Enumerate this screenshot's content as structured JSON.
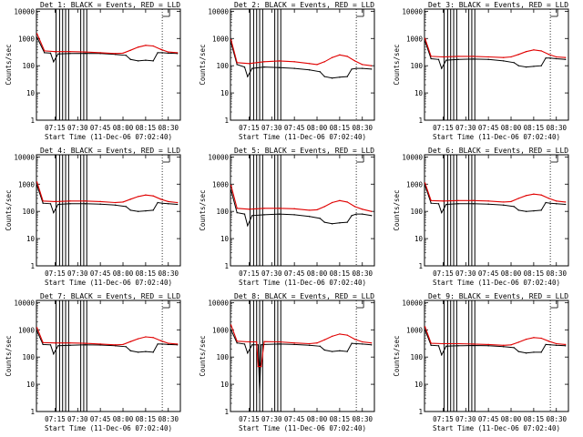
{
  "colors": {
    "events": "#000000",
    "lld": "#e00000",
    "frame": "#000000"
  },
  "common": {
    "ylabel": "Counts/sec",
    "xlabel": "Start Time (11-Dec-06 07:02:40)",
    "xticks": [
      "07:15",
      "07:30",
      "07:45",
      "08:00",
      "08:15",
      "08:30"
    ],
    "yticks": [
      "1",
      "10",
      "100",
      "1000",
      "10000"
    ],
    "yscale": "log"
  },
  "chart_data": [
    {
      "type": "line",
      "title": "Det 1: BLACK = Events, RED = LLD",
      "xlabel": "Start Time (11-Dec-06 07:02:40)",
      "ylabel": "Counts/sec",
      "x_range": [
        "07:02:40",
        "08:38"
      ],
      "ylim": [
        1,
        12000
      ],
      "yscale": "log",
      "series": [
        {
          "name": "Events",
          "x": [
            "07:03",
            "07:08",
            "07:12",
            "07:14",
            "07:17",
            "07:25",
            "07:35",
            "07:45",
            "07:55",
            "08:02",
            "08:05",
            "08:10",
            "08:15",
            "08:20",
            "08:23",
            "08:26",
            "08:30",
            "08:36"
          ],
          "values": [
            1100,
            300,
            290,
            140,
            270,
            280,
            285,
            280,
            260,
            240,
            170,
            150,
            160,
            150,
            300,
            300,
            290,
            280
          ]
        },
        {
          "name": "LLD",
          "x": [
            "07:03",
            "07:08",
            "07:15",
            "07:25",
            "07:35",
            "07:45",
            "07:55",
            "08:00",
            "08:05",
            "08:10",
            "08:15",
            "08:20",
            "08:25",
            "08:30",
            "08:36"
          ],
          "values": [
            1500,
            350,
            330,
            330,
            320,
            300,
            280,
            290,
            370,
            480,
            560,
            530,
            400,
            320,
            300
          ]
        }
      ]
    },
    {
      "type": "line",
      "title": "Det 2: BLACK = Events, RED = LLD",
      "xlabel": "Start Time (11-Dec-06 07:02:40)",
      "ylabel": "Counts/sec",
      "x_range": [
        "07:02:40",
        "08:38"
      ],
      "ylim": [
        1,
        12000
      ],
      "yscale": "log",
      "series": [
        {
          "name": "Events",
          "x": [
            "07:03",
            "07:07",
            "07:12",
            "07:14",
            "07:17",
            "07:25",
            "07:35",
            "07:45",
            "07:55",
            "08:02",
            "08:05",
            "08:10",
            "08:15",
            "08:20",
            "08:23",
            "08:26",
            "08:30",
            "08:36"
          ],
          "values": [
            700,
            110,
            90,
            40,
            80,
            90,
            85,
            80,
            70,
            60,
            40,
            35,
            38,
            40,
            75,
            80,
            80,
            75
          ]
        },
        {
          "name": "LLD",
          "x": [
            "07:03",
            "07:07",
            "07:15",
            "07:25",
            "07:35",
            "07:45",
            "07:55",
            "08:00",
            "08:05",
            "08:10",
            "08:15",
            "08:20",
            "08:25",
            "08:30",
            "08:36"
          ],
          "values": [
            900,
            130,
            120,
            140,
            150,
            140,
            120,
            110,
            140,
            200,
            250,
            220,
            150,
            110,
            100
          ]
        }
      ]
    },
    {
      "type": "line",
      "title": "Det 3: BLACK = Events, RED = LLD",
      "xlabel": "Start Time (11-Dec-06 07:02:40)",
      "ylabel": "Counts/sec",
      "x_range": [
        "07:02:40",
        "08:38"
      ],
      "ylim": [
        1,
        12000
      ],
      "yscale": "log",
      "series": [
        {
          "name": "Events",
          "x": [
            "07:03",
            "07:07",
            "07:12",
            "07:14",
            "07:17",
            "07:25",
            "07:35",
            "07:45",
            "07:55",
            "08:02",
            "08:05",
            "08:10",
            "08:15",
            "08:20",
            "08:23",
            "08:26",
            "08:30",
            "08:36"
          ],
          "values": [
            800,
            180,
            170,
            80,
            160,
            170,
            175,
            170,
            150,
            130,
            100,
            90,
            95,
            100,
            190,
            190,
            180,
            170
          ]
        },
        {
          "name": "LLD",
          "x": [
            "07:03",
            "07:07",
            "07:15",
            "07:25",
            "07:35",
            "07:45",
            "07:55",
            "08:00",
            "08:05",
            "08:10",
            "08:15",
            "08:20",
            "08:25",
            "08:30",
            "08:36"
          ],
          "values": [
            1000,
            220,
            210,
            220,
            220,
            210,
            200,
            210,
            260,
            330,
            380,
            350,
            260,
            210,
            200
          ]
        }
      ]
    },
    {
      "type": "line",
      "title": "Det 4: BLACK = Events, RED = LLD",
      "xlabel": "Start Time (11-Dec-06 07:02:40)",
      "ylabel": "Counts/sec",
      "x_range": [
        "07:02:40",
        "08:38"
      ],
      "ylim": [
        1,
        12000
      ],
      "yscale": "log",
      "series": [
        {
          "name": "Events",
          "x": [
            "07:03",
            "07:07",
            "07:12",
            "07:14",
            "07:17",
            "07:25",
            "07:35",
            "07:45",
            "07:55",
            "08:02",
            "08:05",
            "08:10",
            "08:15",
            "08:20",
            "08:23",
            "08:26",
            "08:30",
            "08:36"
          ],
          "values": [
            900,
            200,
            190,
            90,
            180,
            190,
            190,
            185,
            170,
            150,
            110,
            100,
            105,
            110,
            210,
            200,
            190,
            180
          ]
        },
        {
          "name": "LLD",
          "x": [
            "07:03",
            "07:07",
            "07:15",
            "07:25",
            "07:35",
            "07:45",
            "07:55",
            "08:00",
            "08:05",
            "08:10",
            "08:15",
            "08:20",
            "08:25",
            "08:30",
            "08:36"
          ],
          "values": [
            1200,
            240,
            230,
            240,
            240,
            230,
            210,
            220,
            280,
            350,
            400,
            370,
            280,
            230,
            210
          ]
        }
      ]
    },
    {
      "type": "line",
      "title": "Det 5: BLACK = Events, RED = LLD",
      "xlabel": "Start Time (11-Dec-06 07:02:40)",
      "ylabel": "Counts/sec",
      "x_range": [
        "07:02:40",
        "08:38"
      ],
      "ylim": [
        1,
        12000
      ],
      "yscale": "log",
      "series": [
        {
          "name": "Events",
          "x": [
            "07:03",
            "07:07",
            "07:12",
            "07:14",
            "07:17",
            "07:25",
            "07:35",
            "07:45",
            "07:55",
            "08:02",
            "08:05",
            "08:10",
            "08:15",
            "08:20",
            "08:23",
            "08:26",
            "08:30",
            "08:36"
          ],
          "values": [
            600,
            90,
            80,
            30,
            70,
            75,
            80,
            75,
            65,
            55,
            40,
            35,
            38,
            40,
            70,
            80,
            80,
            70
          ]
        },
        {
          "name": "LLD",
          "x": [
            "07:03",
            "07:07",
            "07:15",
            "07:25",
            "07:35",
            "07:45",
            "07:55",
            "08:00",
            "08:05",
            "08:10",
            "08:15",
            "08:20",
            "08:25",
            "08:30",
            "08:36"
          ],
          "values": [
            900,
            130,
            120,
            130,
            130,
            125,
            110,
            115,
            150,
            210,
            250,
            220,
            150,
            120,
            100
          ]
        }
      ]
    },
    {
      "type": "line",
      "title": "Det 6: BLACK = Events, RED = LLD",
      "xlabel": "Start Time (11-Dec-06 07:02:40)",
      "ylabel": "Counts/sec",
      "x_range": [
        "07:02:40",
        "08:38"
      ],
      "ylim": [
        1,
        12000
      ],
      "yscale": "log",
      "series": [
        {
          "name": "Events",
          "x": [
            "07:03",
            "07:07",
            "07:12",
            "07:14",
            "07:17",
            "07:25",
            "07:35",
            "07:45",
            "07:55",
            "08:02",
            "08:05",
            "08:10",
            "08:15",
            "08:20",
            "08:23",
            "08:26",
            "08:30",
            "08:36"
          ],
          "values": [
            900,
            200,
            190,
            90,
            180,
            190,
            190,
            185,
            170,
            150,
            110,
            100,
            105,
            110,
            210,
            200,
            190,
            180
          ]
        },
        {
          "name": "LLD",
          "x": [
            "07:03",
            "07:07",
            "07:15",
            "07:25",
            "07:35",
            "07:45",
            "07:55",
            "08:00",
            "08:05",
            "08:10",
            "08:15",
            "08:20",
            "08:25",
            "08:30",
            "08:36"
          ],
          "values": [
            1100,
            250,
            240,
            250,
            250,
            240,
            220,
            230,
            300,
            380,
            430,
            400,
            300,
            240,
            220
          ]
        }
      ]
    },
    {
      "type": "line",
      "title": "Det 7: BLACK = Events, RED = LLD",
      "xlabel": "Start Time (11-Dec-06 07:02:40)",
      "ylabel": "Counts/sec",
      "x_range": [
        "07:02:40",
        "08:38"
      ],
      "ylim": [
        1,
        12000
      ],
      "yscale": "log",
      "series": [
        {
          "name": "Events",
          "x": [
            "07:03",
            "07:07",
            "07:12",
            "07:14",
            "07:17",
            "07:25",
            "07:35",
            "07:45",
            "07:55",
            "08:02",
            "08:05",
            "08:10",
            "08:15",
            "08:20",
            "08:23",
            "08:26",
            "08:30",
            "08:36"
          ],
          "values": [
            900,
            290,
            280,
            130,
            260,
            270,
            280,
            275,
            260,
            240,
            170,
            150,
            160,
            150,
            300,
            300,
            290,
            280
          ]
        },
        {
          "name": "LLD",
          "x": [
            "07:03",
            "07:07",
            "07:15",
            "07:25",
            "07:35",
            "07:45",
            "07:55",
            "08:00",
            "08:05",
            "08:10",
            "08:15",
            "08:20",
            "08:25",
            "08:30",
            "08:36"
          ],
          "values": [
            1200,
            340,
            330,
            330,
            320,
            300,
            280,
            290,
            370,
            470,
            550,
            520,
            400,
            320,
            300
          ]
        }
      ]
    },
    {
      "type": "line",
      "title": "Det 8: BLACK = Events, RED = LLD",
      "xlabel": "Start Time (11-Dec-06 07:02:40)",
      "ylabel": "Counts/sec",
      "x_range": [
        "07:02:40",
        "08:38"
      ],
      "ylim": [
        1,
        12000
      ],
      "yscale": "log",
      "series": [
        {
          "name": "Events",
          "x": [
            "07:03",
            "07:07",
            "07:12",
            "07:14",
            "07:17",
            "07:21",
            "07:22",
            "07:23",
            "07:25",
            "07:35",
            "07:45",
            "07:55",
            "08:02",
            "08:05",
            "08:10",
            "08:15",
            "08:20",
            "08:23",
            "08:26",
            "08:30",
            "08:36"
          ],
          "values": [
            1000,
            330,
            300,
            140,
            280,
            280,
            5,
            280,
            290,
            300,
            290,
            270,
            250,
            180,
            160,
            170,
            160,
            320,
            310,
            300,
            280
          ]
        },
        {
          "name": "LLD",
          "x": [
            "07:03",
            "07:07",
            "07:15",
            "07:20",
            "07:21",
            "07:23",
            "07:25",
            "07:35",
            "07:45",
            "07:55",
            "08:00",
            "08:05",
            "08:10",
            "08:15",
            "08:20",
            "08:25",
            "08:30",
            "08:36"
          ],
          "values": [
            1500,
            380,
            360,
            360,
            45,
            45,
            370,
            360,
            330,
            310,
            330,
            430,
            580,
            700,
            640,
            450,
            360,
            330
          ]
        }
      ]
    },
    {
      "type": "line",
      "title": "Det 9: BLACK = Events, RED = LLD",
      "xlabel": "Start Time (11-Dec-06 07:02:40)",
      "ylabel": "Counts/sec",
      "x_range": [
        "07:02:40",
        "08:38"
      ],
      "ylim": [
        1,
        12000
      ],
      "yscale": "log",
      "series": [
        {
          "name": "Events",
          "x": [
            "07:03",
            "07:07",
            "07:12",
            "07:14",
            "07:17",
            "07:25",
            "07:35",
            "07:45",
            "07:55",
            "08:02",
            "08:05",
            "08:10",
            "08:15",
            "08:20",
            "08:23",
            "08:26",
            "08:30",
            "08:36"
          ],
          "values": [
            1000,
            270,
            260,
            120,
            250,
            260,
            265,
            260,
            240,
            220,
            160,
            140,
            150,
            150,
            290,
            280,
            270,
            260
          ]
        },
        {
          "name": "LLD",
          "x": [
            "07:03",
            "07:07",
            "07:15",
            "07:25",
            "07:35",
            "07:45",
            "07:55",
            "08:00",
            "08:05",
            "08:10",
            "08:15",
            "08:20",
            "08:25",
            "08:30",
            "08:36"
          ],
          "values": [
            1300,
            320,
            310,
            310,
            300,
            290,
            270,
            280,
            350,
            450,
            520,
            490,
            380,
            310,
            290
          ]
        }
      ]
    }
  ]
}
